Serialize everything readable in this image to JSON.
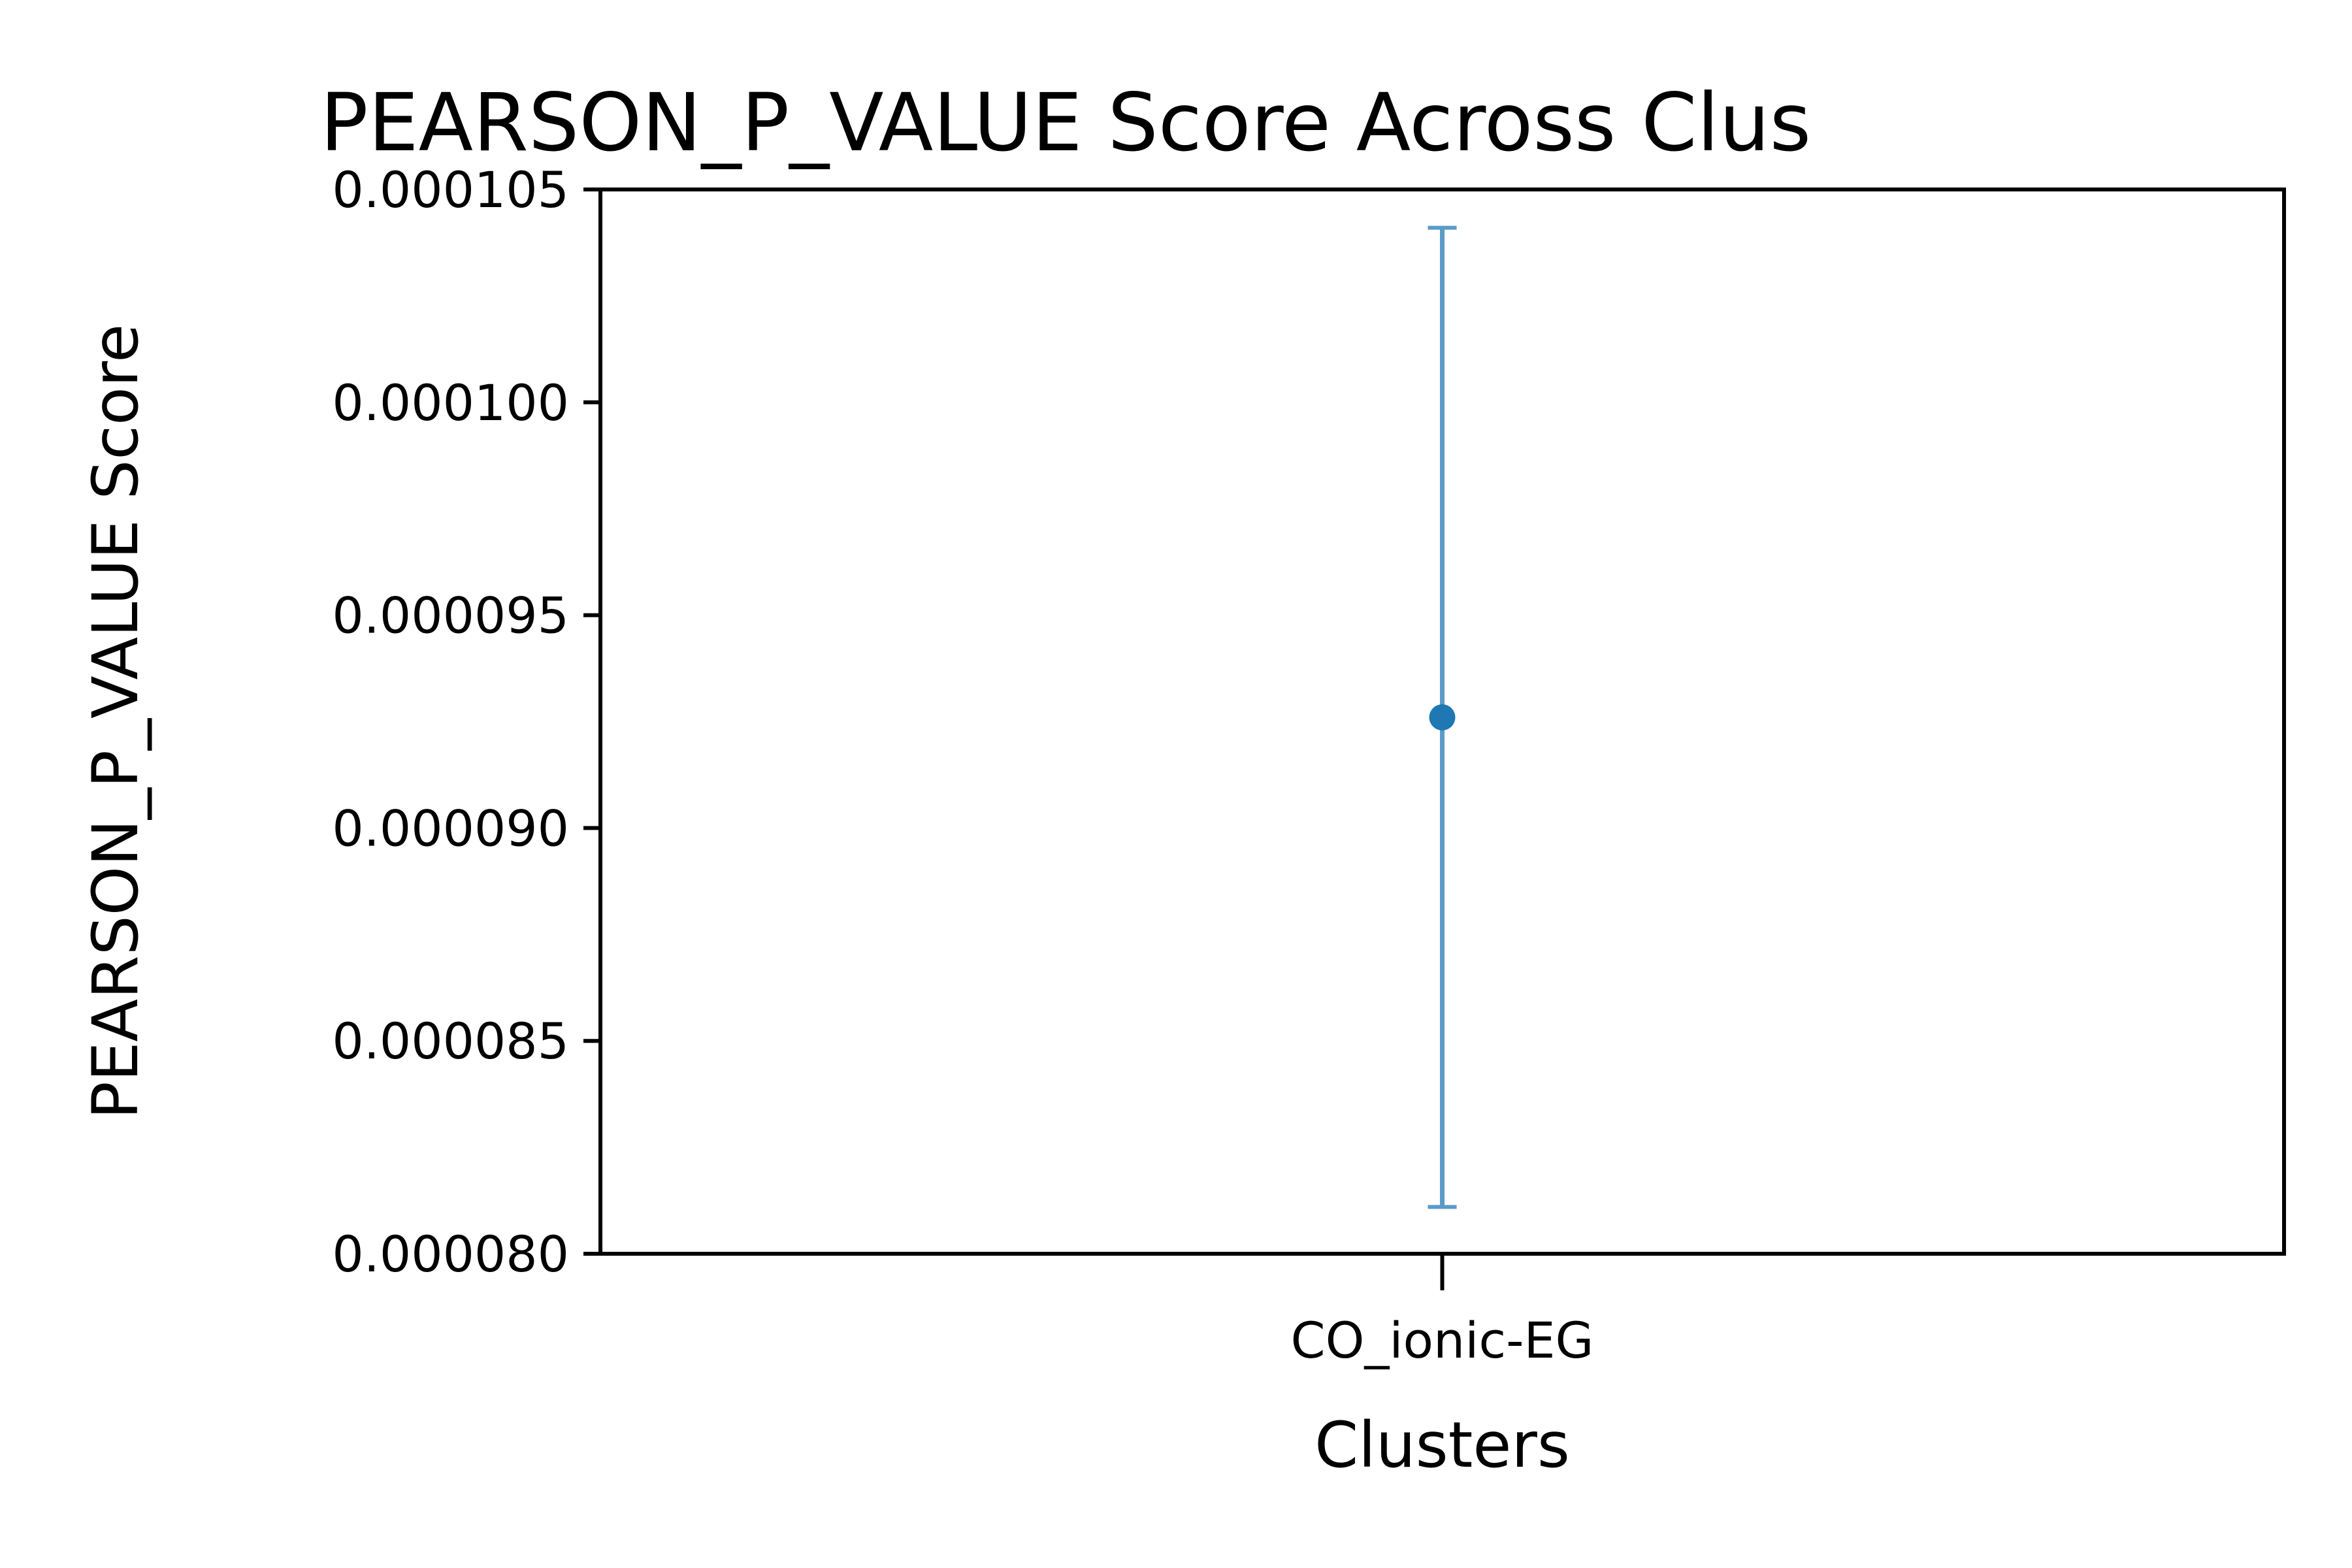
{
  "chart_data": {
    "type": "scatter",
    "title": "PEARSON_P_VALUE Score Across Clus",
    "xlabel": "Clusters",
    "ylabel": "PEARSON_P_VALUE Score",
    "categories": [
      "CO_ionic-EG"
    ],
    "series": [
      {
        "values": [
          9.26e-05
        ],
        "error_low": [
          8.11e-05
        ],
        "error_high": [
          0.0001041
        ]
      }
    ],
    "ylim": [
      8e-05,
      0.000105
    ],
    "yticks": [
      8e-05,
      8.5e-05,
      9e-05,
      9.5e-05,
      0.0001,
      0.000105
    ],
    "ytick_labels": [
      "0.000080",
      "0.000085",
      "0.000090",
      "0.000095",
      "0.000100",
      "0.000105"
    ],
    "grid": false,
    "colors": {
      "marker": "#1f77b4",
      "errorbar": "#5b9bc8",
      "axes": "#000000"
    }
  }
}
